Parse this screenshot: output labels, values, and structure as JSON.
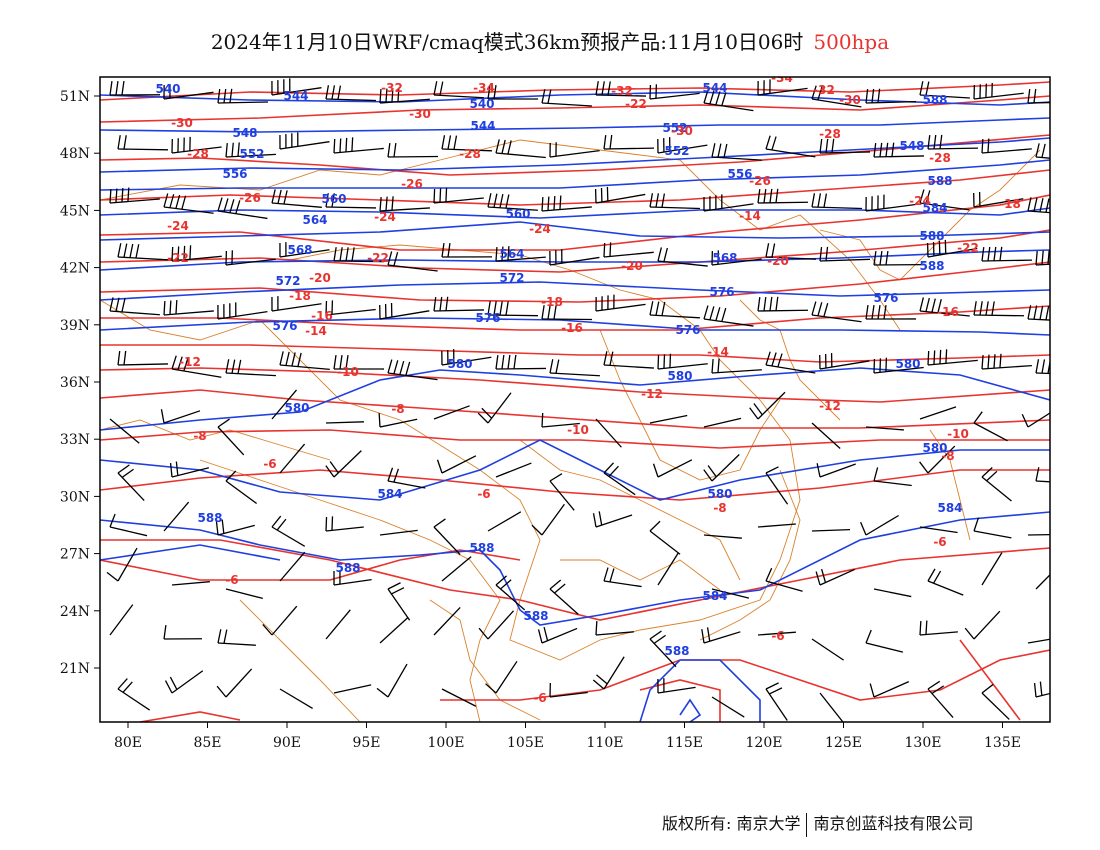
{
  "title": {
    "main": "2024年11月10日WRF/cmaq模式36km预报产品:11月10日06时",
    "level": "500hpa",
    "level_color": "#e8332f"
  },
  "axes": {
    "lon_ticks": [
      "80E",
      "85E",
      "90E",
      "95E",
      "100E",
      "105E",
      "110E",
      "115E",
      "120E",
      "125E",
      "130E",
      "135E"
    ],
    "lat_ticks": [
      "51N",
      "48N",
      "45N",
      "42N",
      "39N",
      "36N",
      "33N",
      "30N",
      "27N",
      "24N",
      "21N"
    ]
  },
  "colors": {
    "height_contour": "#1f3fe0",
    "temperature_contour": "#e8332f",
    "boundary": "#d9822b",
    "wind_barb": "#000000"
  },
  "contour_labels": {
    "height": [
      "540",
      "544",
      "548",
      "552",
      "556",
      "560",
      "564",
      "568",
      "572",
      "576",
      "580",
      "584",
      "588"
    ],
    "temperature": [
      "-34",
      "-32",
      "-30",
      "-28",
      "-26",
      "-24",
      "-22",
      "-20",
      "-18",
      "-16",
      "-14",
      "-12",
      "-10",
      "-8",
      "-6"
    ]
  },
  "footer": {
    "copyright": "版权所有: 南京大学",
    "company": "南京创蓝科技有限公司"
  }
}
